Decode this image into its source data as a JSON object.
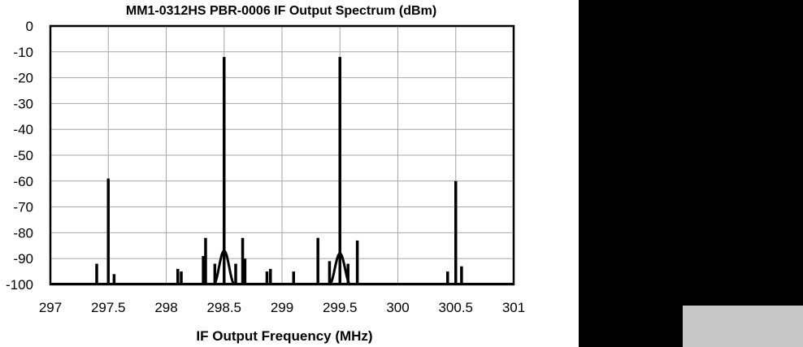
{
  "chart_data": {
    "type": "line",
    "title": "MM1-0312HS PBR-0006 IF Output Spectrum (dBm)",
    "xlabel": "IF Output Frequency (MHz)",
    "ylabel": "",
    "xlim": [
      297,
      301
    ],
    "ylim": [
      -100,
      0
    ],
    "x_ticks": [
      "297",
      "297.5",
      "298",
      "298.5",
      "299",
      "299.5",
      "300",
      "300.5",
      "301"
    ],
    "y_ticks": [
      "0",
      "-10",
      "-20",
      "-30",
      "-40",
      "-50",
      "-60",
      "-70",
      "-80",
      "-90",
      "-100"
    ],
    "grid": true,
    "legend": "none",
    "line_color": "#000000",
    "peaks": [
      {
        "x": 297.4,
        "y": -92
      },
      {
        "x": 297.5,
        "y": -59
      },
      {
        "x": 297.55,
        "y": -96
      },
      {
        "x": 298.1,
        "y": -94
      },
      {
        "x": 298.13,
        "y": -95
      },
      {
        "x": 298.32,
        "y": -89
      },
      {
        "x": 298.34,
        "y": -82
      },
      {
        "x": 298.42,
        "y": -92
      },
      {
        "x": 298.5,
        "y": -12
      },
      {
        "x": 298.6,
        "y": -92
      },
      {
        "x": 298.66,
        "y": -82
      },
      {
        "x": 298.68,
        "y": -90
      },
      {
        "x": 298.87,
        "y": -95
      },
      {
        "x": 298.9,
        "y": -94
      },
      {
        "x": 299.1,
        "y": -95
      },
      {
        "x": 299.31,
        "y": -82
      },
      {
        "x": 299.41,
        "y": -91
      },
      {
        "x": 299.5,
        "y": -12
      },
      {
        "x": 299.57,
        "y": -92
      },
      {
        "x": 299.65,
        "y": -83
      },
      {
        "x": 300.43,
        "y": -95
      },
      {
        "x": 300.5,
        "y": -60
      },
      {
        "x": 300.55,
        "y": -93
      }
    ],
    "carrier_humps": [
      {
        "center": 298.5,
        "top": -87,
        "half_width": 0.09
      },
      {
        "center": 299.5,
        "top": -88,
        "half_width": 0.09
      }
    ]
  }
}
